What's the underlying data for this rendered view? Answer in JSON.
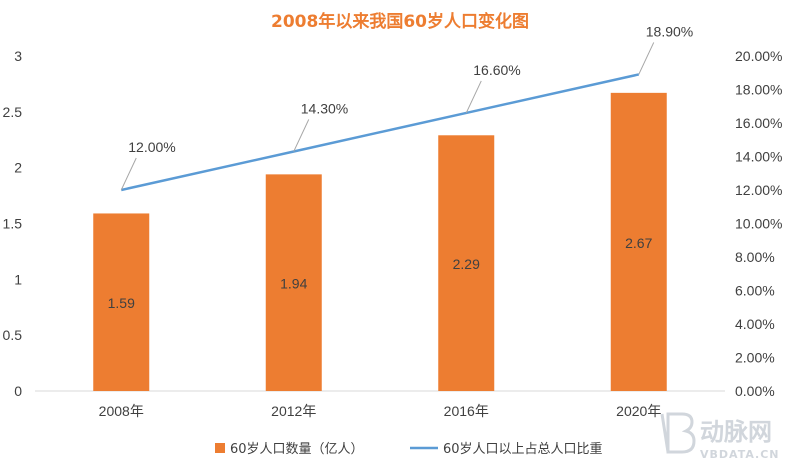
{
  "chart_data": {
    "type": "bar",
    "title": "2008年以来我国60岁人口变化图",
    "categories": [
      "2008年",
      "2012年",
      "2016年",
      "2020年"
    ],
    "series": [
      {
        "name": "60岁人口数量（亿人）",
        "type": "bar",
        "axis": "left",
        "values": [
          1.59,
          1.94,
          2.29,
          2.67
        ],
        "labels": [
          "1.59",
          "1.94",
          "2.29",
          "2.67"
        ],
        "color": "#ED7D31"
      },
      {
        "name": "60岁人口以上占总人口比重",
        "type": "line",
        "axis": "right",
        "values": [
          12.0,
          14.3,
          16.6,
          18.9
        ],
        "labels": [
          "12.00%",
          "14.30%",
          "16.60%",
          "18.90%"
        ],
        "color": "#5B9BD5"
      }
    ],
    "y_left": {
      "range": [
        0,
        3
      ],
      "ticks": [
        0,
        0.5,
        1,
        1.5,
        2,
        2.5,
        3
      ],
      "tick_labels": [
        "0",
        "0.5",
        "1",
        "1.5",
        "2",
        "2.5",
        "3"
      ]
    },
    "y_right": {
      "range": [
        0,
        20
      ],
      "ticks": [
        0,
        2,
        4,
        6,
        8,
        10,
        12,
        14,
        16,
        18,
        20
      ],
      "tick_labels": [
        "0.00%",
        "2.00%",
        "4.00%",
        "6.00%",
        "8.00%",
        "10.00%",
        "12.00%",
        "14.00%",
        "16.00%",
        "18.00%",
        "20.00%"
      ]
    },
    "grid": false,
    "legend_position": "bottom"
  },
  "watermark": {
    "name": "动脉网",
    "url": "VBDATA.CN"
  }
}
